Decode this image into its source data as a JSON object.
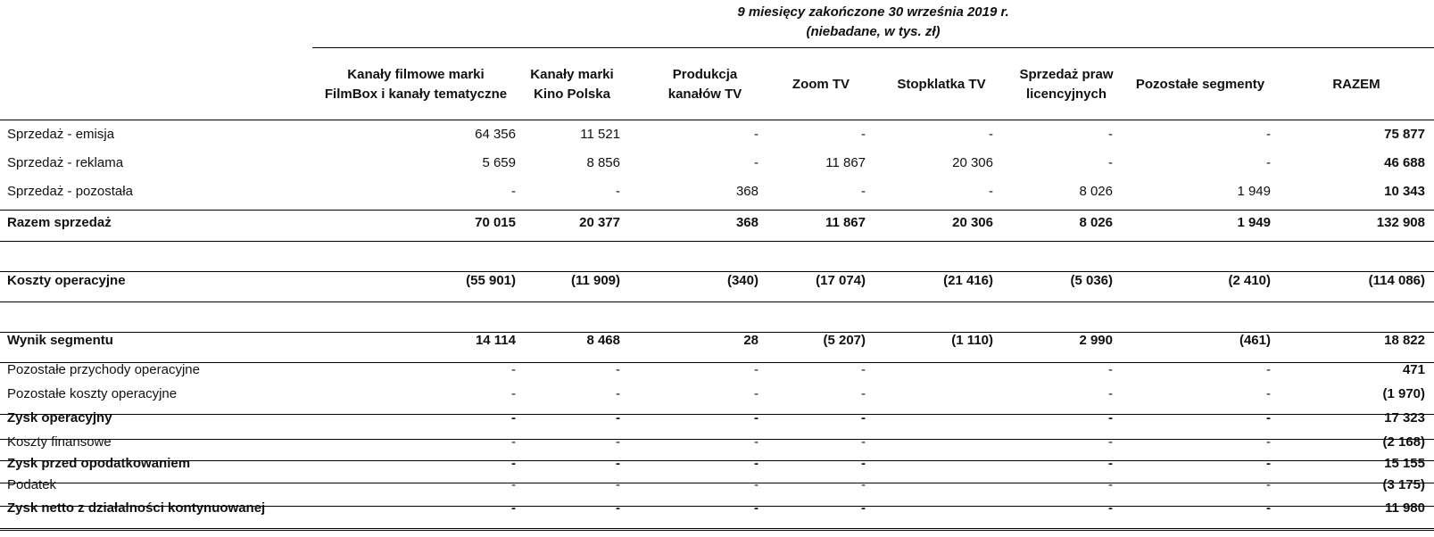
{
  "header": {
    "period_line": "9 miesięcy zakończone 30 września 2019 r.",
    "note_line": "(niebadane, w tys. zł)"
  },
  "columns": [
    {
      "line1": "Kanały filmowe marki",
      "line2": "FilmBox i kanały tematyczne"
    },
    {
      "line1": "Kanały marki",
      "line2": "Kino Polska"
    },
    {
      "line1": "Produkcja",
      "line2": "kanałów TV"
    },
    {
      "line1": "Zoom TV",
      "line2": ""
    },
    {
      "line1": "Stopklatka TV",
      "line2": ""
    },
    {
      "line1": "Sprzedaż praw",
      "line2": "licencyjnych"
    },
    {
      "line1": "Pozostałe segmenty",
      "line2": ""
    },
    {
      "line1": "RAZEM",
      "line2": ""
    }
  ],
  "rows": [
    {
      "label": "Sprzedaż - emisja",
      "values": [
        "64 356",
        "11 521",
        "-",
        "-",
        "-",
        "-",
        "-",
        "75 877"
      ]
    },
    {
      "label": "Sprzedaż - reklama",
      "values": [
        "5 659",
        "8 856",
        "-",
        "11 867",
        "20 306",
        "-",
        "-",
        "46 688"
      ]
    },
    {
      "label": "Sprzedaż - pozostała",
      "values": [
        "-",
        "-",
        "368",
        "-",
        "-",
        "8 026",
        "1 949",
        "10 343"
      ]
    },
    {
      "label": "Razem sprzedaż",
      "values": [
        "70 015",
        "20 377",
        "368",
        "11 867",
        "20 306",
        "8 026",
        "1 949",
        "132 908"
      ]
    },
    {
      "label": "Koszty operacyjne",
      "values": [
        "(55 901)",
        "(11 909)",
        "(340)",
        "(17 074)",
        "(21 416)",
        "(5 036)",
        "(2 410)",
        "(114 086)"
      ]
    },
    {
      "label": "Wynik segmentu",
      "values": [
        "14 114",
        "8 468",
        "28",
        "(5 207)",
        "(1 110)",
        "2 990",
        "(461)",
        "18 822"
      ]
    },
    {
      "label": "Pozostałe przychody operacyjne",
      "values": [
        "-",
        "-",
        "-",
        "-",
        "",
        "-",
        "-",
        "471"
      ]
    },
    {
      "label": "Pozostałe koszty operacyjne",
      "values": [
        "-",
        "-",
        "-",
        "-",
        "",
        "-",
        "-",
        "(1 970)"
      ]
    },
    {
      "label": "Zysk operacyjny",
      "values": [
        "-",
        "-",
        "-",
        "-",
        "",
        "-",
        "-",
        "17 323"
      ]
    },
    {
      "label": "Koszty finansowe",
      "values": [
        "-",
        "-",
        "-",
        "-",
        "",
        "-",
        "-",
        "(2 168)"
      ]
    },
    {
      "label": "Zysk przed opodatkowaniem",
      "values": [
        "-",
        "-",
        "-",
        "-",
        "",
        "-",
        "-",
        "15 155"
      ]
    },
    {
      "label": "Podatek",
      "values": [
        "-",
        "-",
        "-",
        "-",
        "",
        "-",
        "-",
        "(3 175)"
      ]
    },
    {
      "label": "Zysk netto z działalności kontynuowanej",
      "values": [
        "-",
        "-",
        "-",
        "-",
        "",
        "-",
        "-",
        "11 980"
      ]
    }
  ]
}
